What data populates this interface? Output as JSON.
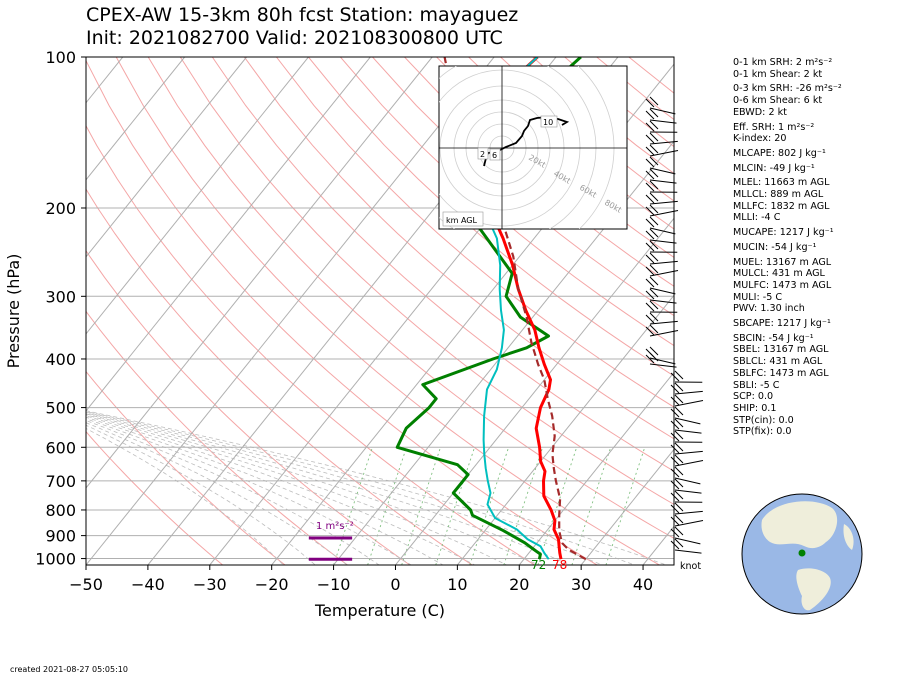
{
  "title_line1": "CPEX-AW 15-3km  80h fcst  Station: mayaguez",
  "title_line2": "Init: 2021082700  Valid: 202108300800 UTC",
  "created": "created 2021-08-27 05:05:10",
  "chart_data": {
    "type": "line",
    "subtype": "skew-T log-P sounding",
    "xlabel": "Temperature (C)",
    "ylabel": "Pressure (hPa)",
    "xlim": [
      -50,
      45
    ],
    "ylim": [
      1030,
      100
    ],
    "x_ticks": [
      -50,
      -40,
      -30,
      -20,
      -10,
      0,
      10,
      20,
      30,
      40
    ],
    "y_ticks": [
      100,
      200,
      300,
      400,
      500,
      600,
      700,
      800,
      900,
      1000
    ],
    "y_scale": "log",
    "grid": true,
    "surface_temp_label": "78",
    "surface_dewpoint_label": "72",
    "wind_unit_label": "knot",
    "srh_label": "1 m²s⁻²",
    "colors": {
      "temperature": "#ff0000",
      "dewpoint": "#008000",
      "virtual": "#00bfbf",
      "parcel": "#a52a2a",
      "srh": "#800080"
    },
    "series": [
      {
        "key": "dewpoint",
        "points": [
          [
            22.5,
            1003
          ],
          [
            22,
            980
          ],
          [
            20,
            955
          ],
          [
            18,
            930
          ],
          [
            13,
            880
          ],
          [
            6,
            820
          ],
          [
            5,
            800
          ],
          [
            0,
            740
          ],
          [
            0,
            710
          ],
          [
            0,
            680
          ],
          [
            -3,
            650
          ],
          [
            -15,
            600
          ],
          [
            -16,
            550
          ],
          [
            -15,
            500
          ],
          [
            -15,
            480
          ],
          [
            -19,
            450
          ],
          [
            -11,
            400
          ],
          [
            -7,
            380
          ],
          [
            -5,
            360
          ],
          [
            -12,
            330
          ],
          [
            -17,
            300
          ],
          [
            -19,
            270
          ],
          [
            -30,
            220
          ],
          [
            -31,
            200
          ],
          [
            -32,
            175
          ],
          [
            -35,
            160
          ],
          [
            -38,
            140
          ],
          [
            -38,
            130
          ],
          [
            -37,
            110
          ],
          [
            -36,
            100
          ]
        ]
      },
      {
        "key": "temperature",
        "points": [
          [
            26,
            1003
          ],
          [
            25,
            975
          ],
          [
            24,
            945
          ],
          [
            23,
            915
          ],
          [
            21,
            875
          ],
          [
            20,
            840
          ],
          [
            18,
            800
          ],
          [
            15,
            750
          ],
          [
            13,
            700
          ],
          [
            12,
            670
          ],
          [
            10,
            640
          ],
          [
            8,
            600
          ],
          [
            5,
            550
          ],
          [
            3,
            500
          ],
          [
            2,
            460
          ],
          [
            1,
            440
          ],
          [
            -2,
            410
          ],
          [
            -5,
            380
          ],
          [
            -8,
            350
          ],
          [
            -12,
            320
          ],
          [
            -16,
            290
          ],
          [
            -20,
            260
          ],
          [
            -25,
            230
          ],
          [
            -29,
            210
          ],
          [
            -33,
            190
          ],
          [
            -38,
            170
          ],
          [
            -42,
            150
          ],
          [
            -45,
            135
          ],
          [
            -45,
            125
          ],
          [
            -44,
            110
          ],
          [
            -43,
            100
          ]
        ]
      },
      {
        "key": "virtual",
        "points": [
          [
            24,
            1003
          ],
          [
            22.5,
            975
          ],
          [
            21,
            945
          ],
          [
            18,
            915
          ],
          [
            15,
            875
          ],
          [
            10,
            830
          ],
          [
            7,
            780
          ],
          [
            6,
            740
          ],
          [
            4,
            700
          ],
          [
            2,
            660
          ],
          [
            0,
            620
          ],
          [
            -2,
            580
          ],
          [
            -5,
            520
          ],
          [
            -8,
            460
          ],
          [
            -9,
            420
          ],
          [
            -11,
            380
          ],
          [
            -13,
            350
          ],
          [
            -16,
            320
          ],
          [
            -19,
            290
          ],
          [
            -22,
            260
          ],
          [
            -26,
            230
          ],
          [
            -30,
            210
          ],
          [
            -34,
            190
          ],
          [
            -38,
            170
          ],
          [
            -42,
            150
          ],
          [
            -45,
            135
          ],
          [
            -45,
            125
          ],
          [
            -44,
            110
          ],
          [
            -43,
            100
          ]
        ]
      },
      {
        "key": "parcel",
        "points": [
          [
            30,
            1003
          ],
          [
            26,
            960
          ],
          [
            24,
            930
          ],
          [
            22,
            880
          ],
          [
            20,
            820
          ],
          [
            18,
            760
          ],
          [
            15,
            700
          ],
          [
            13,
            660
          ],
          [
            11,
            620
          ],
          [
            9,
            570
          ],
          [
            6,
            520
          ],
          [
            3,
            480
          ],
          [
            0,
            440
          ],
          [
            -3,
            410
          ],
          [
            -7,
            370
          ],
          [
            -11,
            330
          ],
          [
            -16,
            290
          ],
          [
            -21,
            250
          ],
          [
            -26,
            220
          ],
          [
            -30,
            200
          ],
          [
            -35,
            180
          ],
          [
            -40,
            160
          ],
          [
            -46,
            140
          ],
          [
            -50,
            125
          ],
          [
            -54,
            112
          ],
          [
            -58,
            100
          ]
        ]
      }
    ],
    "srh_bars": [
      {
        "p": 910,
        "x0": -14,
        "x1": -7
      },
      {
        "p": 1003,
        "x0": -14,
        "x1": -7
      }
    ],
    "hodograph": {
      "rings_kt": [
        20,
        40,
        60,
        80
      ],
      "ring_labels": [
        "20kt",
        "40kt",
        "60kt",
        "80kt"
      ],
      "height_labels": [
        "2",
        "6",
        "10"
      ],
      "corner_label": "km AGL"
    }
  },
  "params": [
    "0-1 km SRH: 2 m²s⁻²",
    "0-1 km Shear: 2 kt",
    "0-3 km SRH: -26 m²s⁻²",
    "0-6 km Shear: 6 kt",
    "EBWD: 2 kt",
    "Eff. SRH: 1 m²s⁻²",
    "K-index: 20",
    "MLCAPE: 802 J kg⁻¹",
    "MLCIN: -49 J kg⁻¹",
    "MLEL: 11663 m AGL",
    "MLLCL: 889 m AGL",
    "MLLFC: 1832 m AGL",
    "MLLI: -4 C",
    "MUCAPE: 1217 J kg⁻¹",
    "MUCIN: -54 J kg⁻¹",
    "MUEL: 13167 m AGL",
    "MULCL: 431 m AGL",
    "MULFC: 1473 m AGL",
    "MULI: -5 C",
    "PWV: 1.30 inch",
    "SBCAPE: 1217 J kg⁻¹",
    "SBCIN: -54 J kg⁻¹",
    "SBEL: 13167 m AGL",
    "SBLCL: 431 m AGL",
    "SBLFC: 1473 m AGL",
    "SBLI: -5 C",
    "SCP: 0.0",
    "SHIP: 0.1",
    "STP(cin): 0.0",
    "STP(fix): 0.0"
  ],
  "globe_colors": {
    "ocean": "#9ab8e6",
    "land": "#efeedb",
    "station": "#008000"
  }
}
